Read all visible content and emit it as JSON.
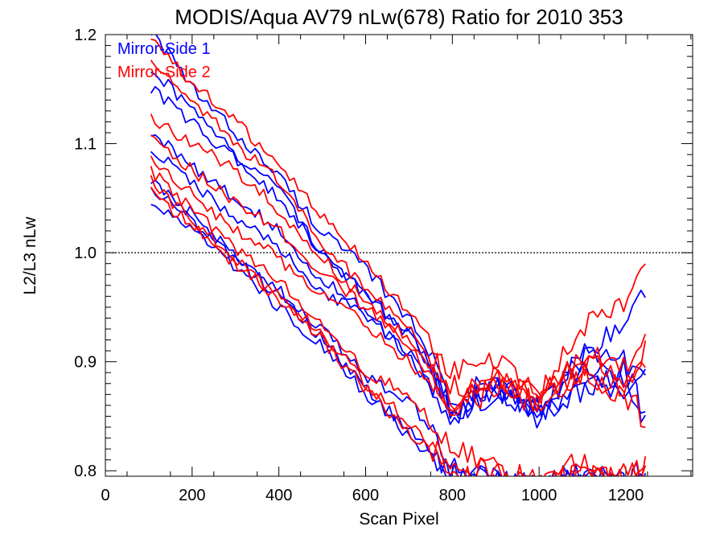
{
  "chart_data": {
    "type": "line",
    "title": "MODIS/Aqua AV79 nLw(678) Ratio for 2010 353",
    "xlabel": "Scan Pixel",
    "ylabel": "L2/L3 nLw",
    "xlim": [
      0,
      1354
    ],
    "ylim": [
      0.795,
      1.2
    ],
    "x_ticks": [
      "0",
      "200",
      "400",
      "600",
      "800",
      "1000",
      "1200"
    ],
    "y_ticks": [
      "0.8",
      "0.9",
      "1.0",
      "1.1",
      "1.2"
    ],
    "reference_line": 1.0,
    "legend": [
      "Mirror-Side 1",
      "Mirror-Side 2"
    ],
    "legend_position": "top-left",
    "colors": {
      "mirror_side_1": "#0000ff",
      "mirror_side_2": "#ff0000",
      "reference": "#000000"
    },
    "x": [
      105,
      200,
      300,
      400,
      500,
      600,
      700,
      800,
      900,
      1000,
      1100,
      1200,
      1250
    ],
    "series": [
      {
        "mirror_side": 1,
        "values": [
          1.205,
          1.15,
          1.11,
          1.07,
          1.02,
          0.985,
          0.94,
          0.87,
          0.88,
          0.86,
          0.905,
          0.935,
          0.97
        ]
      },
      {
        "mirror_side": 1,
        "values": [
          1.17,
          1.13,
          1.09,
          1.06,
          1.0,
          0.96,
          0.93,
          0.86,
          0.875,
          0.855,
          0.905,
          0.9,
          0.89
        ]
      },
      {
        "mirror_side": 1,
        "values": [
          1.15,
          1.12,
          1.085,
          1.05,
          1.0,
          0.96,
          0.925,
          0.86,
          0.87,
          0.86,
          0.895,
          0.88,
          0.85
        ]
      },
      {
        "mirror_side": 1,
        "values": [
          1.11,
          1.08,
          1.05,
          1.02,
          0.975,
          0.945,
          0.905,
          0.85,
          0.875,
          0.855,
          0.875,
          0.895,
          0.84
        ]
      },
      {
        "mirror_side": 1,
        "values": [
          1.095,
          1.065,
          1.03,
          1.005,
          0.965,
          0.94,
          0.91,
          0.855,
          0.87,
          0.85,
          0.88,
          0.87,
          0.885
        ]
      },
      {
        "mirror_side": 1,
        "values": [
          1.065,
          1.035,
          0.995,
          0.965,
          0.93,
          0.885,
          0.865,
          0.81,
          0.79,
          0.785,
          0.8,
          0.79,
          0.8
        ]
      },
      {
        "mirror_side": 1,
        "values": [
          1.045,
          1.02,
          0.985,
          0.95,
          0.915,
          0.87,
          0.84,
          0.79,
          0.785,
          0.785,
          0.795,
          0.79,
          0.795
        ]
      },
      {
        "mirror_side": 1,
        "values": [
          1.06,
          1.03,
          0.995,
          0.96,
          0.92,
          0.875,
          0.83,
          0.8,
          0.79,
          0.785,
          0.8,
          0.79,
          0.8
        ]
      },
      {
        "mirror_side": 2,
        "values": [
          1.195,
          1.155,
          1.12,
          1.08,
          1.035,
          0.99,
          0.945,
          0.89,
          0.9,
          0.87,
          0.93,
          0.955,
          0.99
        ]
      },
      {
        "mirror_side": 2,
        "values": [
          1.175,
          1.14,
          1.1,
          1.065,
          1.01,
          0.965,
          0.935,
          0.875,
          0.885,
          0.865,
          0.91,
          0.9,
          0.92
        ]
      },
      {
        "mirror_side": 2,
        "values": [
          1.125,
          1.1,
          1.075,
          1.04,
          0.995,
          0.955,
          0.92,
          0.865,
          0.88,
          0.87,
          0.9,
          0.885,
          0.91
        ]
      },
      {
        "mirror_side": 2,
        "values": [
          1.105,
          1.075,
          1.045,
          1.02,
          0.98,
          0.95,
          0.915,
          0.86,
          0.885,
          0.865,
          0.89,
          0.87,
          0.845
        ]
      },
      {
        "mirror_side": 2,
        "values": [
          1.085,
          1.055,
          1.02,
          0.995,
          0.96,
          0.935,
          0.9,
          0.855,
          0.875,
          0.86,
          0.885,
          0.88,
          0.9
        ]
      },
      {
        "mirror_side": 2,
        "values": [
          1.075,
          1.04,
          1.005,
          0.975,
          0.935,
          0.89,
          0.87,
          0.82,
          0.8,
          0.79,
          0.81,
          0.79,
          0.805
        ]
      },
      {
        "mirror_side": 2,
        "values": [
          1.055,
          1.025,
          0.99,
          0.96,
          0.925,
          0.88,
          0.845,
          0.8,
          0.79,
          0.785,
          0.8,
          0.795,
          0.8
        ]
      },
      {
        "mirror_side": 2,
        "values": [
          1.065,
          1.03,
          0.995,
          0.955,
          0.92,
          0.875,
          0.835,
          0.805,
          0.8,
          0.79,
          0.795,
          0.79,
          0.805
        ]
      }
    ]
  }
}
